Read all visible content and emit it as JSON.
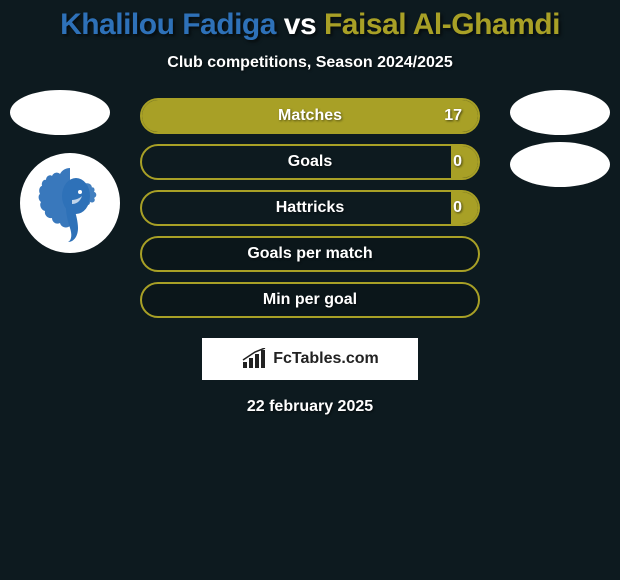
{
  "title": {
    "player1": "Khalilou Fadiga",
    "vs": "vs",
    "player2": "Faisal Al-Ghamdi",
    "color1": "#2e71b8",
    "color_vs": "#ffffff",
    "color2": "#a8a026"
  },
  "subtitle": "Club competitions, Season 2024/2025",
  "stats": [
    {
      "label": "Matches",
      "value": "17",
      "fill_pct": 100
    },
    {
      "label": "Goals",
      "value": "0",
      "fill_pct": 8
    },
    {
      "label": "Hattricks",
      "value": "0",
      "fill_pct": 8
    },
    {
      "label": "Goals per match",
      "value": "",
      "fill_pct": 0
    },
    {
      "label": "Min per goal",
      "value": "",
      "fill_pct": 0
    }
  ],
  "stat_style": {
    "border_color": "#a8a026",
    "fill_color": "#a8a026",
    "label_color": "#ffffff"
  },
  "brand": {
    "text": "FcTables.com",
    "icon_color": "#222222"
  },
  "date": "22 february 2025",
  "native_logo_color": "#2e71b8",
  "placeholder_logo_color": "#ffffff"
}
